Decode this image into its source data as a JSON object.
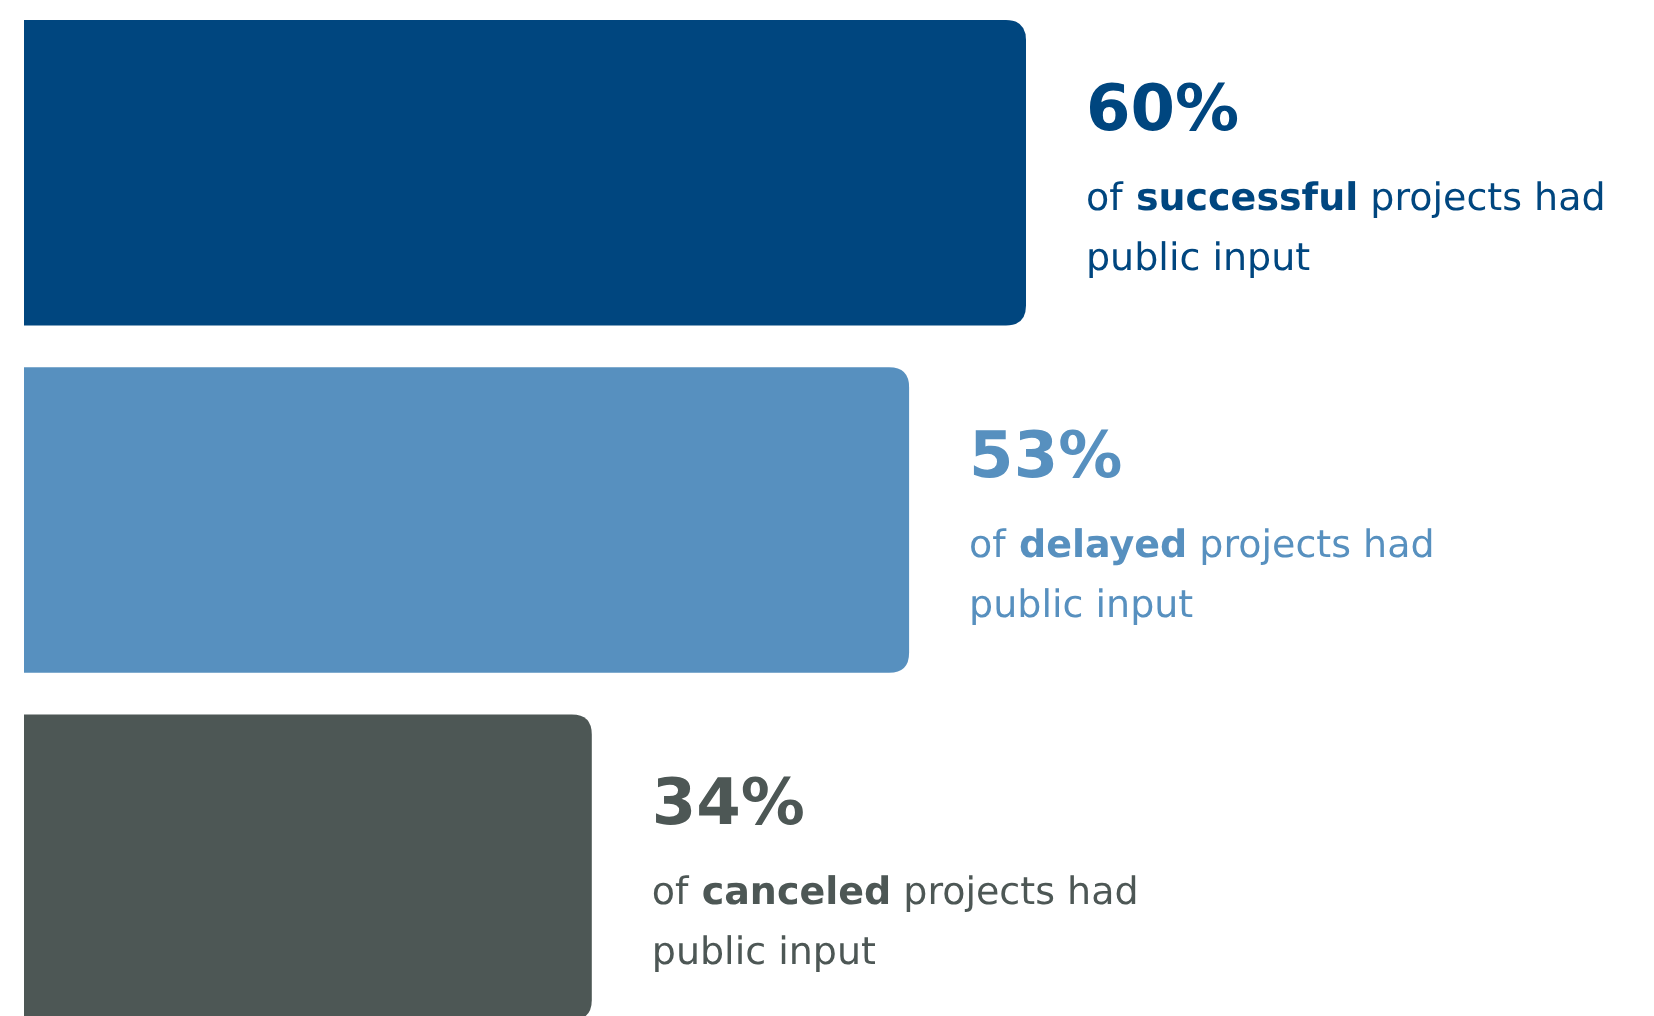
{
  "chart_data": {
    "type": "bar",
    "orientation": "horizontal",
    "categories": [
      "of successful projects had public input",
      "of delayed projects had public input",
      "of canceled projects had public input"
    ],
    "values": [
      60,
      53,
      34
    ],
    "colors": [
      "#00467f",
      "#5790bf",
      "#4d5755"
    ],
    "value_labels": [
      "60%",
      "53%",
      "34%"
    ]
  }
}
